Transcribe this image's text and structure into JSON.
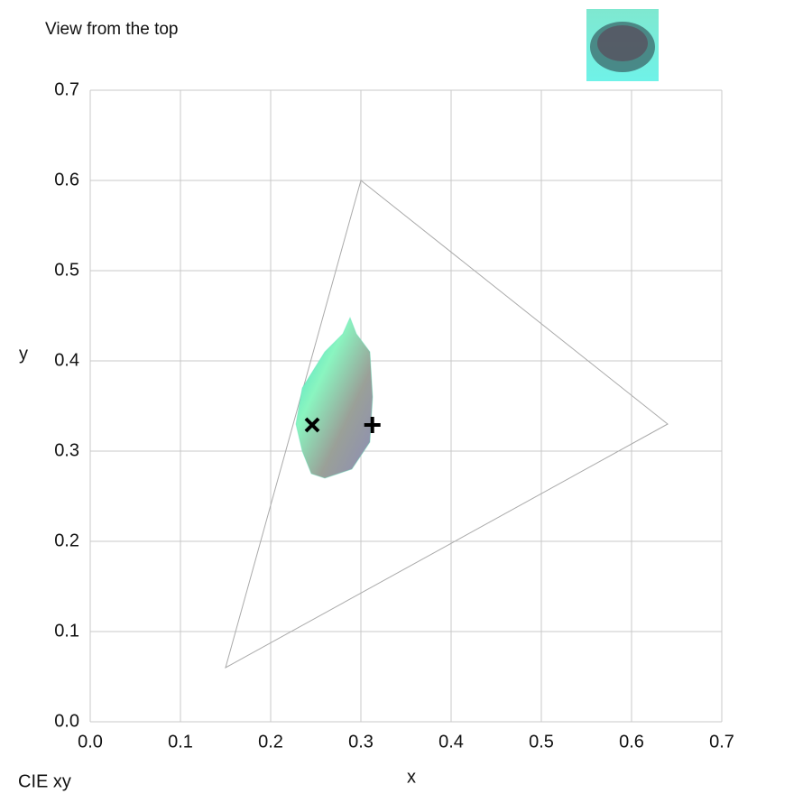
{
  "header": {
    "title": "View from the top"
  },
  "chart_data": {
    "type": "scatter",
    "caption": "CIE xy",
    "xlabel": "x",
    "ylabel": "y",
    "xlim": [
      0,
      0.7
    ],
    "ylim": [
      0,
      0.7
    ],
    "xticks": [
      {
        "value": 0,
        "label": "0.0"
      },
      0.1,
      0.2,
      0.3,
      0.4,
      0.5,
      0.6,
      0.7
    ],
    "yticks": [
      {
        "value": 0,
        "label": "0.0"
      },
      0.1,
      0.2,
      0.3,
      0.4,
      0.5,
      0.6,
      0.7
    ],
    "grid": true,
    "series": [
      {
        "kind": "polygon",
        "color": "#aaaaaa",
        "x": [
          0.64,
          0.3,
          0.15
        ],
        "y": [
          0.33,
          0.6,
          0.06
        ]
      },
      {
        "kind": "cloud",
        "color": "#5fe0b8",
        "x": [
          0.228,
          0.235,
          0.26,
          0.28,
          0.288,
          0.295,
          0.31,
          0.313,
          0.31,
          0.29,
          0.26,
          0.245,
          0.235
        ],
        "y": [
          0.33,
          0.37,
          0.41,
          0.43,
          0.448,
          0.43,
          0.41,
          0.36,
          0.31,
          0.28,
          0.27,
          0.275,
          0.3
        ]
      },
      {
        "kind": "marker",
        "marker": "x",
        "color": "#000000",
        "x": [
          0.246
        ],
        "y": [
          0.329
        ]
      },
      {
        "kind": "marker",
        "marker": "plus",
        "color": "#000000",
        "x": [
          0.3127
        ],
        "y": [
          0.329
        ]
      }
    ]
  }
}
